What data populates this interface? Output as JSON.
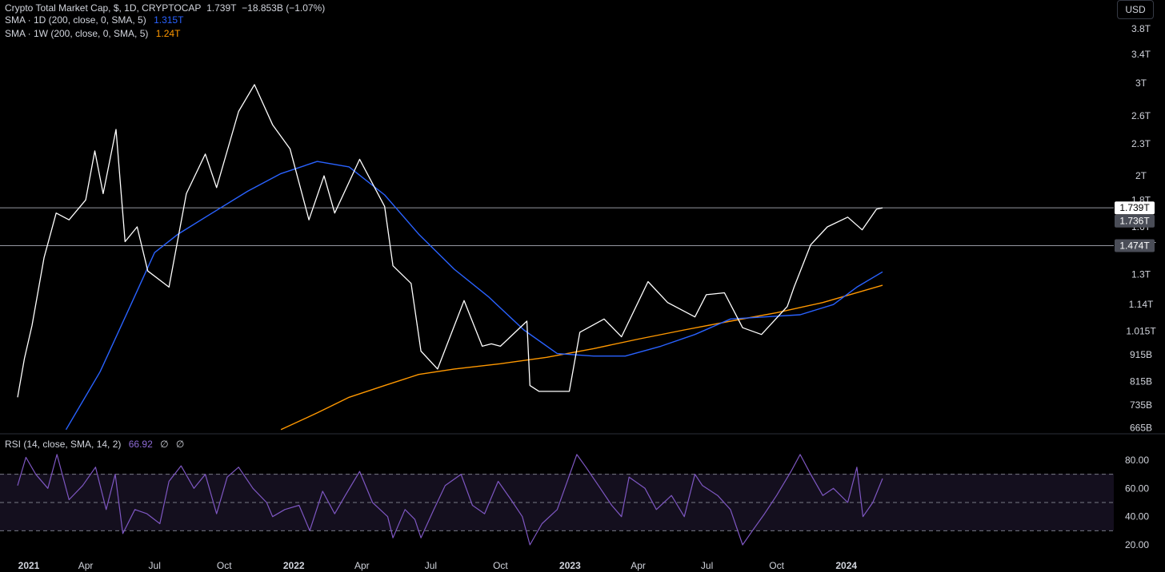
{
  "header": {
    "symbol_line": "Crypto Total Market Cap, $, 1D, CRYPTOCAP",
    "last_price": "1.739T",
    "change": "−18.853B (−1.07%)",
    "sma1_label": "SMA · 1D (200, close, 0, SMA, 5)",
    "sma1_value": "1.315T",
    "sma2_label": "SMA · 1W (200, close, 0, SMA, 5)",
    "sma2_value": "1.24T",
    "rsi_label": "RSI (14, close, SMA, 14, 2)",
    "rsi_value": "66.92",
    "rsi_extra1": "∅",
    "rsi_extra2": "∅"
  },
  "currency_button": "USD",
  "colors": {
    "price": "#ffffff",
    "sma_1d": "#2962ff",
    "sma_1w": "#ff9800",
    "rsi": "#7e57c2",
    "rsi_band": "#1a1424",
    "price_tag_bg": "#ffffff",
    "level_tag_bg": "#4a4d57"
  },
  "chart_data": {
    "type": "line",
    "title": "Crypto Total Market Cap, $, 1D, CRYPTOCAP",
    "x_tick_labels": [
      "2021",
      "Apr",
      "Jul",
      "Oct",
      "2022",
      "Apr",
      "Jul",
      "Oct",
      "2023",
      "Apr",
      "Jul",
      "Oct",
      "2024"
    ],
    "y_scale": "log",
    "y_tick_labels": [
      "3.8T",
      "3.4T",
      "3T",
      "2.6T",
      "2.3T",
      "2T",
      "1.8T",
      "1.6T",
      "1.474T",
      "1.3T",
      "1.14T",
      "1.015T",
      "915B",
      "815B",
      "735B",
      "665B"
    ],
    "y_tick_values_billions": [
      3800,
      3400,
      3000,
      2600,
      2300,
      2000,
      1800,
      1600,
      1474,
      1300,
      1140,
      1015,
      915,
      815,
      735,
      665
    ],
    "price_tags": [
      {
        "label": "1.739T",
        "value_billions": 1739,
        "style": "current"
      },
      {
        "label": "1.736T",
        "value_billions": 1736,
        "style": "level"
      },
      {
        "label": "1.474T",
        "value_billions": 1474,
        "style": "level"
      }
    ],
    "horizontal_lines_billions": [
      1739,
      1474
    ],
    "series": [
      {
        "name": "Crypto Total Market Cap",
        "color": "#ffffff",
        "x": [
          "2021-01-01",
          "2021-01-10",
          "2021-01-20",
          "2021-02-05",
          "2021-02-21",
          "2021-03-10",
          "2021-04-01",
          "2021-04-13",
          "2021-04-24",
          "2021-05-11",
          "2021-05-23",
          "2021-06-08",
          "2021-06-22",
          "2021-07-20",
          "2021-08-12",
          "2021-09-06",
          "2021-09-21",
          "2021-10-20",
          "2021-11-10",
          "2021-12-04",
          "2021-12-27",
          "2022-01-21",
          "2022-02-10",
          "2022-02-24",
          "2022-03-29",
          "2022-05-01",
          "2022-05-12",
          "2022-06-05",
          "2022-06-18",
          "2022-07-10",
          "2022-08-14",
          "2022-09-07",
          "2022-09-19",
          "2022-10-01",
          "2022-11-05",
          "2022-11-09",
          "2022-11-21",
          "2022-12-31",
          "2023-01-14",
          "2023-02-15",
          "2023-03-10",
          "2023-04-14",
          "2023-05-10",
          "2023-06-15",
          "2023-06-30",
          "2023-07-24",
          "2023-08-17",
          "2023-09-11",
          "2023-10-15",
          "2023-10-24",
          "2023-11-15",
          "2023-12-07",
          "2024-01-03",
          "2024-01-22",
          "2024-02-10",
          "2024-02-18"
        ],
        "y": [
          760,
          900,
          1040,
          1400,
          1700,
          1650,
          1800,
          2230,
          1850,
          2450,
          1500,
          1600,
          1320,
          1230,
          1850,
          2200,
          1900,
          2650,
          2980,
          2500,
          2250,
          1650,
          2000,
          1700,
          2150,
          1750,
          1350,
          1250,
          930,
          860,
          1160,
          950,
          960,
          950,
          1060,
          800,
          780,
          780,
          1010,
          1070,
          990,
          1260,
          1150,
          1080,
          1190,
          1200,
          1030,
          1000,
          1130,
          1230,
          1480,
          1600,
          1670,
          1580,
          1730,
          1739
        ]
      },
      {
        "name": "SMA · 1D (200, close, 0, SMA, 5)",
        "color": "#2962ff",
        "x": [
          "2021-03-06",
          "2021-04-20",
          "2021-06-01",
          "2021-07-01",
          "2021-08-01",
          "2021-09-15",
          "2021-11-01",
          "2021-12-15",
          "2022-02-01",
          "2022-03-15",
          "2022-05-01",
          "2022-06-15",
          "2022-08-01",
          "2022-09-15",
          "2022-11-01",
          "2022-12-15",
          "2023-02-01",
          "2023-03-15",
          "2023-05-01",
          "2023-06-15",
          "2023-08-01",
          "2023-09-15",
          "2023-11-01",
          "2023-12-15",
          "2024-01-15",
          "2024-02-18"
        ],
        "y": [
          660,
          850,
          1150,
          1430,
          1550,
          1700,
          1870,
          2020,
          2130,
          2080,
          1840,
          1550,
          1330,
          1180,
          1020,
          920,
          910,
          910,
          950,
          1000,
          1070,
          1080,
          1090,
          1140,
          1230,
          1315
        ]
      },
      {
        "name": "SMA · 1W (200, close, 0, SMA, 5)",
        "color": "#ff9800",
        "x": [
          "2021-12-15",
          "2022-02-01",
          "2022-03-15",
          "2022-05-01",
          "2022-06-15",
          "2022-08-01",
          "2022-10-01",
          "2022-12-01",
          "2023-02-01",
          "2023-04-01",
          "2023-06-01",
          "2023-08-01",
          "2023-10-01",
          "2023-12-01",
          "2024-02-18"
        ],
        "y": [
          660,
          710,
          760,
          800,
          840,
          860,
          880,
          905,
          940,
          980,
          1020,
          1060,
          1100,
          1150,
          1240
        ]
      }
    ],
    "rsi": {
      "name": "RSI (14, close, SMA, 14, 2)",
      "color": "#7e57c2",
      "y_tick_labels": [
        "80.00",
        "60.00",
        "40.00",
        "20.00"
      ],
      "ylim": [
        15,
        85
      ],
      "bands": [
        70,
        50,
        30
      ],
      "last_value": 66.92,
      "x": [
        "2021-01-01",
        "2021-01-12",
        "2021-01-25",
        "2021-02-10",
        "2021-02-22",
        "2021-03-10",
        "2021-03-28",
        "2021-04-14",
        "2021-04-28",
        "2021-05-10",
        "2021-05-20",
        "2021-06-05",
        "2021-06-21",
        "2021-07-08",
        "2021-07-20",
        "2021-08-05",
        "2021-08-22",
        "2021-09-06",
        "2021-09-21",
        "2021-10-05",
        "2021-10-20",
        "2021-11-08",
        "2021-11-26",
        "2021-12-04",
        "2021-12-20",
        "2022-01-08",
        "2022-01-22",
        "2022-02-08",
        "2022-02-24",
        "2022-03-10",
        "2022-03-29",
        "2022-04-15",
        "2022-05-05",
        "2022-05-12",
        "2022-05-28",
        "2022-06-10",
        "2022-06-18",
        "2022-07-05",
        "2022-07-20",
        "2022-08-10",
        "2022-08-25",
        "2022-09-10",
        "2022-09-28",
        "2022-10-15",
        "2022-10-30",
        "2022-11-09",
        "2022-11-25",
        "2022-12-15",
        "2023-01-10",
        "2023-01-22",
        "2023-02-10",
        "2023-02-25",
        "2023-03-10",
        "2023-03-20",
        "2023-04-10",
        "2023-04-25",
        "2023-05-15",
        "2023-06-01",
        "2023-06-15",
        "2023-06-25",
        "2023-07-15",
        "2023-08-01",
        "2023-08-17",
        "2023-08-30",
        "2023-09-15",
        "2023-10-01",
        "2023-10-20",
        "2023-11-01",
        "2023-11-15",
        "2023-12-01",
        "2023-12-15",
        "2024-01-03",
        "2024-01-15",
        "2024-01-23",
        "2024-02-05",
        "2024-02-18"
      ],
      "y": [
        62,
        82,
        70,
        60,
        84,
        52,
        62,
        75,
        45,
        70,
        28,
        45,
        42,
        35,
        65,
        76,
        60,
        70,
        42,
        68,
        75,
        60,
        50,
        40,
        45,
        48,
        30,
        58,
        42,
        55,
        72,
        50,
        40,
        25,
        45,
        38,
        25,
        45,
        62,
        70,
        48,
        42,
        65,
        52,
        40,
        20,
        35,
        45,
        84,
        75,
        60,
        48,
        40,
        68,
        60,
        45,
        55,
        40,
        70,
        62,
        55,
        45,
        20,
        30,
        42,
        55,
        72,
        84,
        70,
        55,
        60,
        50,
        75,
        40,
        50,
        67
      ]
    }
  }
}
